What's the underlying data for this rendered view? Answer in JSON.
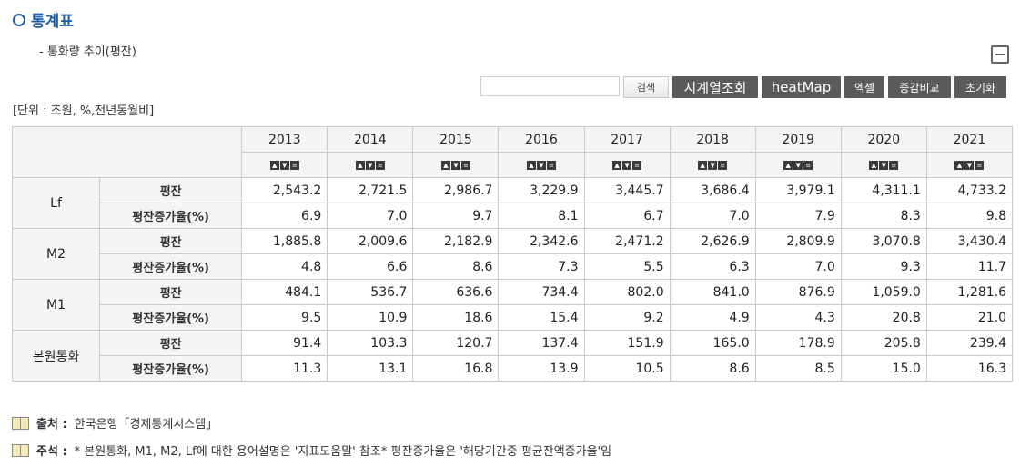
{
  "page": {
    "title": "통계표",
    "subtitle": "- 통화량 추이(평잔)",
    "unit": "[단위 : 조원, %,전년동월비]"
  },
  "toolbar": {
    "search_placeholder": "",
    "search_label": "검색",
    "timeseries_label": "시계열조회",
    "heatmap_label": "heatMap",
    "excel_label": "엑셀",
    "compare_label": "증감비교",
    "reset_label": "초기화"
  },
  "table": {
    "years": [
      "2013",
      "2014",
      "2015",
      "2016",
      "2017",
      "2018",
      "2019",
      "2020",
      "2021"
    ],
    "groups": [
      {
        "name": "Lf",
        "rows": [
          {
            "label": "평잔",
            "values": [
              "2,543.2",
              "2,721.5",
              "2,986.7",
              "3,229.9",
              "3,445.7",
              "3,686.4",
              "3,979.1",
              "4,311.1",
              "4,733.2"
            ]
          },
          {
            "label": "평잔증가율(%)",
            "values": [
              "6.9",
              "7.0",
              "9.7",
              "8.1",
              "6.7",
              "7.0",
              "7.9",
              "8.3",
              "9.8"
            ]
          }
        ]
      },
      {
        "name": "M2",
        "rows": [
          {
            "label": "평잔",
            "values": [
              "1,885.8",
              "2,009.6",
              "2,182.9",
              "2,342.6",
              "2,471.2",
              "2,626.9",
              "2,809.9",
              "3,070.8",
              "3,430.4"
            ]
          },
          {
            "label": "평잔증가율(%)",
            "values": [
              "4.8",
              "6.6",
              "8.6",
              "7.3",
              "5.5",
              "6.3",
              "7.0",
              "9.3",
              "11.7"
            ]
          }
        ]
      },
      {
        "name": "M1",
        "rows": [
          {
            "label": "평잔",
            "values": [
              "484.1",
              "536.7",
              "636.6",
              "734.4",
              "802.0",
              "841.0",
              "876.9",
              "1,059.0",
              "1,281.6"
            ]
          },
          {
            "label": "평잔증가율(%)",
            "values": [
              "9.5",
              "10.9",
              "18.6",
              "15.4",
              "9.2",
              "4.9",
              "4.3",
              "20.8",
              "21.0"
            ]
          }
        ]
      },
      {
        "name": "본원통화",
        "rows": [
          {
            "label": "평잔",
            "values": [
              "91.4",
              "103.3",
              "120.7",
              "137.4",
              "151.9",
              "165.0",
              "178.9",
              "205.8",
              "239.4"
            ]
          },
          {
            "label": "평잔증가율(%)",
            "values": [
              "11.3",
              "13.1",
              "16.8",
              "13.9",
              "10.5",
              "8.6",
              "8.5",
              "15.0",
              "16.3"
            ]
          }
        ]
      }
    ]
  },
  "notes": {
    "source_label": "출처 :",
    "source_text": "한국은행「경제통계시스템」",
    "note_label": "주석 :",
    "note_text": "* 본원통화, M1, M2, Lf에 대한 용어설명은 '지표도움말' 참조* 평잔증가율은 '해당기간중 평균잔액증가율'임"
  }
}
